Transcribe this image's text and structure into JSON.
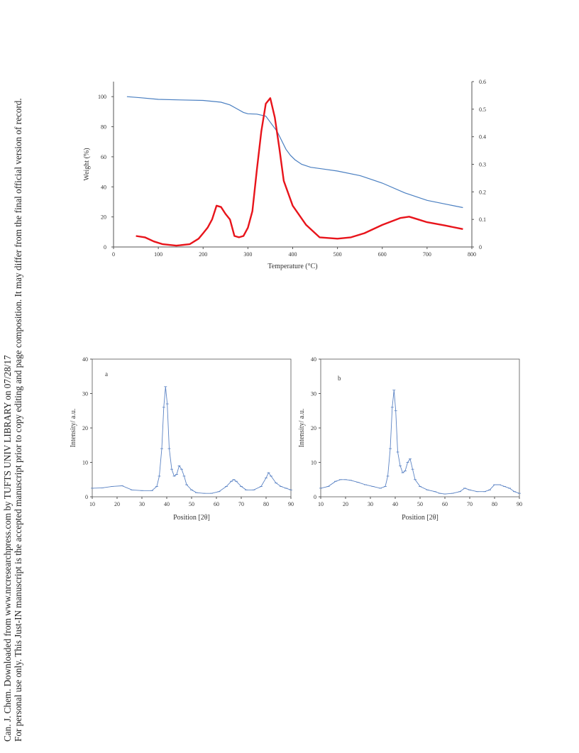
{
  "side_note": {
    "line1": "Can. J. Chem. Downloaded from www.nrcresearchpress.com by TUFTS UNIV LIBRARY on 07/28/17",
    "line2": "For personal use only. This Just-IN manuscript is the accepted manuscript prior to copy editing and page composition. It may differ from the final official version of record."
  },
  "colors": {
    "weight": "#4a7fc1",
    "derivative": "#e8141b",
    "xrd": "#5b83c4",
    "axis": "#555555"
  },
  "chart_data": [
    {
      "type": "line",
      "xlabel": "Temperature (°C)",
      "ylabel": "Weight (%)",
      "xlim": [
        0,
        800
      ],
      "ylim": [
        0,
        110
      ],
      "y2lim": [
        0,
        0.6
      ],
      "x_ticks": [
        "0",
        "100",
        "200",
        "300",
        "400",
        "500",
        "600",
        "700",
        "800"
      ],
      "y_ticks": [
        "0",
        "20",
        "40",
        "60",
        "80",
        "100"
      ],
      "y2_ticks": [
        "0",
        "0.1",
        "0.2",
        "0.3",
        "0.4",
        "0.5",
        "0.6"
      ],
      "series": [
        {
          "axis": "left",
          "color": "#4a7fc1",
          "x": [
            30,
            60,
            100,
            150,
            200,
            240,
            260,
            275,
            290,
            300,
            320,
            340,
            350,
            365,
            375,
            385,
            395,
            405,
            420,
            440,
            470,
            500,
            550,
            600,
            650,
            700,
            750,
            780
          ],
          "y": [
            100,
            99.3,
            98.2,
            97.8,
            97.5,
            96.3,
            94.5,
            92,
            89.5,
            88.6,
            88.4,
            87,
            83,
            77,
            71,
            65,
            61,
            58,
            55,
            53,
            51.8,
            50.5,
            47.5,
            42.5,
            36,
            31,
            28,
            26.2
          ]
        },
        {
          "axis": "right",
          "color": "#e8141b",
          "x": [
            50,
            70,
            90,
            110,
            140,
            170,
            190,
            200,
            210,
            220,
            230,
            240,
            250,
            260,
            270,
            280,
            290,
            300,
            310,
            320,
            330,
            340,
            350,
            360,
            370,
            380,
            400,
            430,
            460,
            500,
            530,
            560,
            600,
            640,
            660,
            680,
            700,
            740,
            780
          ],
          "y": [
            0.04,
            0.035,
            0.02,
            0.01,
            0.005,
            0.01,
            0.03,
            0.05,
            0.07,
            0.1,
            0.15,
            0.145,
            0.12,
            0.1,
            0.04,
            0.035,
            0.04,
            0.07,
            0.13,
            0.28,
            0.42,
            0.52,
            0.54,
            0.47,
            0.36,
            0.24,
            0.15,
            0.08,
            0.035,
            0.03,
            0.035,
            0.05,
            0.08,
            0.105,
            0.11,
            0.1,
            0.09,
            0.078,
            0.065
          ]
        }
      ]
    },
    {
      "type": "line",
      "panel": "a",
      "xlabel": "Position [2θ]",
      "ylabel": "Intensity/ a.u.",
      "xlim": [
        10,
        90
      ],
      "ylim": [
        0,
        40
      ],
      "x_ticks": [
        "10",
        "20",
        "30",
        "40",
        "50",
        "60",
        "70",
        "80",
        "90"
      ],
      "y_ticks": [
        "0",
        "10",
        "20",
        "30",
        "40"
      ],
      "series": [
        {
          "color": "#5b83c4",
          "x": [
            10,
            14,
            18,
            22,
            26,
            30,
            34,
            36,
            37,
            38,
            38.8,
            39.5,
            40.2,
            41,
            42,
            43,
            44,
            45,
            46,
            47,
            48,
            50,
            52,
            55,
            58,
            61,
            64,
            66,
            67,
            68,
            70,
            72,
            75,
            78,
            80,
            81,
            82,
            84,
            86,
            88,
            90
          ],
          "y": [
            2.5,
            2.6,
            3.0,
            3.2,
            2.0,
            1.8,
            1.8,
            3,
            6,
            14,
            26,
            32,
            27,
            14,
            8,
            6,
            6.5,
            9,
            8,
            6,
            3.5,
            2,
            1.2,
            1,
            1,
            1.5,
            3,
            4.5,
            5,
            4.5,
            3,
            2,
            2,
            3,
            5.5,
            7,
            6,
            4,
            3,
            2.5,
            2
          ]
        }
      ]
    },
    {
      "type": "line",
      "panel": "b",
      "xlabel": "Position [2θ]",
      "ylabel": "Intensity/ a.u.",
      "xlim": [
        10,
        90
      ],
      "ylim": [
        0,
        40
      ],
      "x_ticks": [
        "10",
        "20",
        "30",
        "40",
        "50",
        "60",
        "70",
        "80",
        "90"
      ],
      "y_ticks": [
        "0",
        "10",
        "20",
        "30",
        "40"
      ],
      "series": [
        {
          "color": "#5b83c4",
          "x": [
            10,
            13,
            16,
            18,
            20,
            22,
            25,
            28,
            31,
            34,
            36,
            37,
            38,
            38.8,
            39.5,
            40.2,
            41,
            42,
            43,
            44,
            45,
            46,
            47,
            48,
            50,
            53,
            56,
            58,
            60,
            63,
            66,
            68,
            70,
            73,
            76,
            78,
            80,
            82,
            84,
            86,
            88,
            90
          ],
          "y": [
            2.5,
            3,
            4.5,
            5,
            5,
            4.8,
            4.2,
            3.5,
            3,
            2.5,
            3,
            6,
            14,
            26,
            31,
            25,
            13,
            9,
            7,
            7.5,
            10,
            11,
            8,
            5,
            3,
            2,
            1.5,
            1,
            0.8,
            1,
            1.5,
            2.5,
            2,
            1.5,
            1.5,
            2,
            3.5,
            3.5,
            3,
            2.5,
            1.5,
            1
          ]
        }
      ]
    }
  ]
}
